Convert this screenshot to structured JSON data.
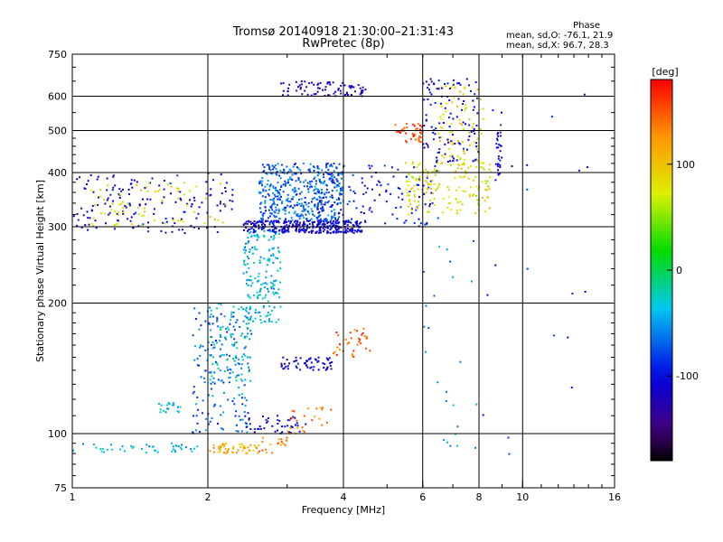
{
  "header": {
    "title": "Tromsø 20140918 21:30:00–21:31:43",
    "subtitle": "RwPretec (8p)"
  },
  "phase_info": {
    "heading": "Phase",
    "line1": "mean, sd,O: -76.1, 21.9",
    "line2": "mean, sd,X: 96.7, 28.3"
  },
  "colorbar": {
    "unit": "[deg]",
    "ticks": [
      {
        "value": 100,
        "label": "100"
      },
      {
        "value": 0,
        "label": "0"
      },
      {
        "value": -100,
        "label": "-100"
      }
    ],
    "range": [
      -180,
      180
    ]
  },
  "chart_data": {
    "type": "scatter",
    "xlabel": "Frequency [MHz]",
    "ylabel": "Stationary phase Virtual Height [km]",
    "xscale": "log",
    "yscale": "log",
    "xlim": [
      1,
      16
    ],
    "ylim": [
      75,
      750
    ],
    "xticks": [
      1,
      2,
      4,
      6,
      8,
      10,
      16
    ],
    "xtick_labels": [
      "1",
      "2",
      "4",
      "6",
      "8",
      "10",
      "16"
    ],
    "yticks": [
      75,
      100,
      200,
      300,
      400,
      500,
      600,
      750
    ],
    "ytick_labels": [
      "75",
      "100",
      "200",
      "300",
      "400",
      "500",
      "600",
      "750"
    ],
    "x_gridlines": [
      2,
      4,
      6,
      8,
      10
    ],
    "y_gridlines": [
      100,
      200,
      300,
      400,
      500,
      600
    ],
    "grid": true,
    "colorbar_quantity": "phase (deg)",
    "clusters": [
      {
        "x": [
          1.0,
          1.9
        ],
        "y": [
          90,
          95
        ],
        "phase": -40,
        "n": 45
      },
      {
        "x": [
          2.0,
          2.6
        ],
        "y": [
          90,
          95
        ],
        "phase": 110,
        "n": 50
      },
      {
        "x": [
          2.6,
          3.0
        ],
        "y": [
          90,
          100
        ],
        "phase": 130,
        "n": 20
      },
      {
        "x": [
          1.85,
          2.5
        ],
        "y": [
          100,
          200
        ],
        "phase": -70,
        "n": 160
      },
      {
        "x": [
          2.0,
          2.5
        ],
        "y": [
          120,
          200
        ],
        "phase": -30,
        "n": 90
      },
      {
        "x": [
          2.4,
          2.9
        ],
        "y": [
          180,
          300
        ],
        "phase": -40,
        "n": 180
      },
      {
        "x": [
          1.55,
          1.75
        ],
        "y": [
          112,
          118
        ],
        "phase": -40,
        "n": 18
      },
      {
        "x": [
          2.9,
          3.8
        ],
        "y": [
          140,
          150
        ],
        "phase": -110,
        "n": 60
      },
      {
        "x": [
          3.8,
          4.6
        ],
        "y": [
          150,
          175
        ],
        "phase": 150,
        "n": 35
      },
      {
        "x": [
          2.4,
          3.3
        ],
        "y": [
          100,
          110
        ],
        "phase": -110,
        "n": 45
      },
      {
        "x": [
          3.0,
          3.8
        ],
        "y": [
          100,
          115
        ],
        "phase": 130,
        "n": 25
      },
      {
        "x": [
          2.4,
          4.4
        ],
        "y": [
          290,
          310
        ],
        "phase": -110,
        "n": 320
      },
      {
        "x": [
          2.6,
          4.0
        ],
        "y": [
          310,
          420
        ],
        "phase": -70,
        "n": 420
      },
      {
        "x": [
          2.9,
          4.5
        ],
        "y": [
          600,
          650
        ],
        "phase": -120,
        "n": 80
      },
      {
        "x": [
          3.5,
          6.5
        ],
        "y": [
          300,
          420
        ],
        "phase": -100,
        "n": 130
      },
      {
        "x": [
          5.5,
          8.5
        ],
        "y": [
          320,
          430
        ],
        "phase": 80,
        "n": 150
      },
      {
        "x": [
          6.5,
          8.2
        ],
        "y": [
          400,
          640
        ],
        "phase": 90,
        "n": 80
      },
      {
        "x": [
          6.0,
          8.0
        ],
        "y": [
          420,
          660
        ],
        "phase": -110,
        "n": 110
      },
      {
        "x": [
          5.2,
          6.0
        ],
        "y": [
          470,
          520
        ],
        "phase": 160,
        "n": 40
      },
      {
        "x": [
          1.0,
          2.3
        ],
        "y": [
          290,
          400
        ],
        "phase": -110,
        "n": 160
      },
      {
        "x": [
          1.1,
          2.2
        ],
        "y": [
          300,
          380
        ],
        "phase": 80,
        "n": 70
      },
      {
        "x": [
          8.7,
          9.0
        ],
        "y": [
          380,
          520
        ],
        "phase": -110,
        "n": 30
      },
      {
        "x": [
          6.0,
          8.0
        ],
        "y": [
          90,
          300
        ],
        "phase": -60,
        "n": 25
      },
      {
        "x": [
          8.0,
          14.0
        ],
        "y": [
          80,
          650
        ],
        "phase": -100,
        "n": 20
      }
    ]
  }
}
